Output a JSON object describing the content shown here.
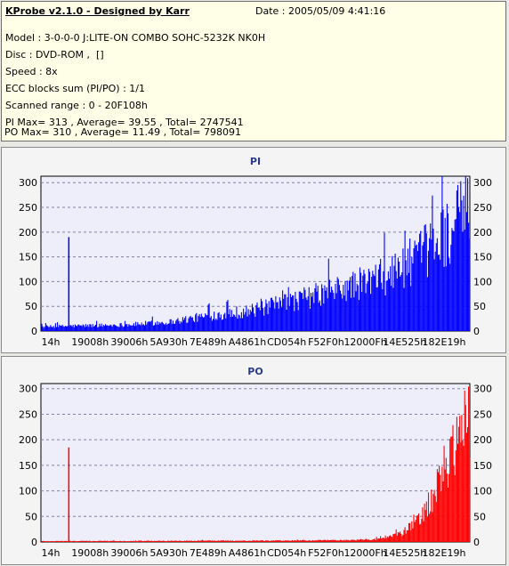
{
  "app": {
    "title": "KProbe v2.1.0 - Designed by Karr",
    "date": "Date : 2005/05/09 4:41:16"
  },
  "info_lines": [
    "Model : 3-0-0-0 J:LITE-ON COMBO SOHC-5232K NK0H",
    "Disc : DVD-ROM ,  []",
    "Speed : 8x",
    "ECC blocks sum (PI/PO) : 1/1",
    "Scanned range : 0 - 20F108h",
    "PI Max= 313 , Average= 39.55 , Total= 2747541",
    "PO Max= 310 , Average= 11.49 , Total= 798091"
  ],
  "colors": {
    "pi": "#0000ff",
    "po": "#ff0000",
    "plot_bg": "#eeeefa",
    "grid": "#8080a0",
    "title": "#2a3a90"
  },
  "chart_data": [
    {
      "type": "bar",
      "title": "PI",
      "xlabel": "",
      "ylabel": "",
      "ylim": [
        0,
        313
      ],
      "yticks": [
        0,
        50,
        100,
        150,
        200,
        250,
        300
      ],
      "xtick_labels": [
        "14h",
        "19008h",
        "39006h",
        "5A930h",
        "7E489h",
        "A4861h",
        "CD054h",
        "F52F0h",
        "12000Fh",
        "14E525h",
        "182E19h"
      ],
      "grid": true,
      "spike": {
        "x_fraction": 0.065,
        "value": 190
      },
      "envelope_points": [
        [
          0.0,
          10
        ],
        [
          0.06,
          12
        ],
        [
          0.2,
          15
        ],
        [
          0.3,
          22
        ],
        [
          0.4,
          38
        ],
        [
          0.5,
          50
        ],
        [
          0.6,
          75
        ],
        [
          0.7,
          100
        ],
        [
          0.8,
          130
        ],
        [
          0.88,
          175
        ],
        [
          0.95,
          240
        ],
        [
          1.0,
          290
        ]
      ],
      "max": 313,
      "average": 39.55,
      "total": 2747541,
      "series_color": "#0000ff"
    },
    {
      "type": "bar",
      "title": "PO",
      "xlabel": "",
      "ylabel": "",
      "ylim": [
        0,
        310
      ],
      "yticks": [
        0,
        50,
        100,
        150,
        200,
        250,
        300
      ],
      "xtick_labels": [
        "14h",
        "19008h",
        "39006h",
        "5A930h",
        "7E489h",
        "A4861h",
        "CD054h",
        "F52F0h",
        "12000Fh",
        "14E525h",
        "182E19h"
      ],
      "grid": true,
      "spike": {
        "x_fraction": 0.065,
        "value": 185
      },
      "envelope_points": [
        [
          0.0,
          2
        ],
        [
          0.5,
          3
        ],
        [
          0.7,
          4
        ],
        [
          0.78,
          6
        ],
        [
          0.84,
          20
        ],
        [
          0.88,
          50
        ],
        [
          0.91,
          100
        ],
        [
          0.94,
          170
        ],
        [
          0.97,
          240
        ],
        [
          1.0,
          290
        ]
      ],
      "max": 310,
      "average": 11.49,
      "total": 798091,
      "series_color": "#ff0000"
    }
  ]
}
